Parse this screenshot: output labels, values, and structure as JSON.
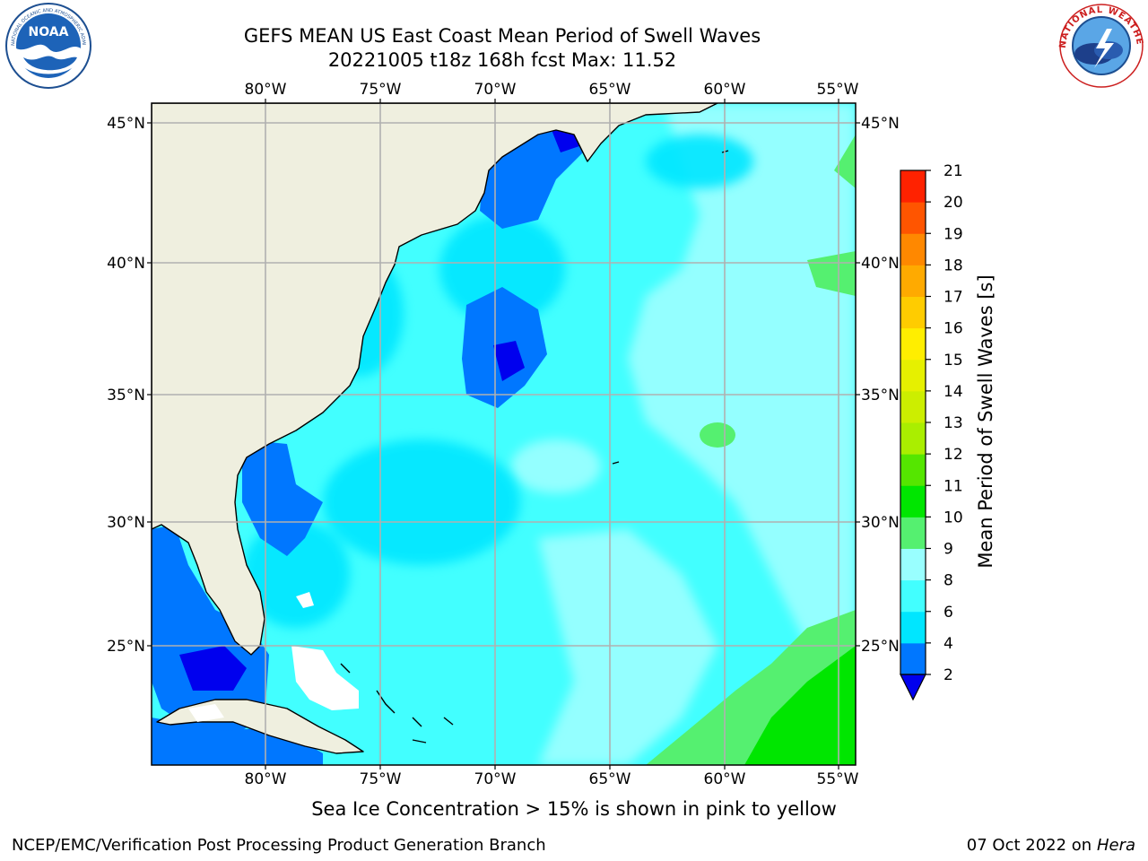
{
  "title": {
    "line1": "GEFS MEAN US East Coast Mean Period of Swell Waves",
    "line2": "20221005 t18z 168h fcst   Max: 11.52"
  },
  "logos": {
    "left": {
      "icon": "noaa-logo",
      "text": "NOAA",
      "ring_text": "NATIONAL OCEANIC AND ATMOSPHERIC ADMINISTRATION · U.S. DEPARTMENT OF COMMERCE"
    },
    "right": {
      "icon": "nws-logo",
      "ring_text": "NATIONAL WEATHER SERVICE"
    }
  },
  "map": {
    "lon_labels": [
      "80°W",
      "75°W",
      "70°W",
      "65°W",
      "60°W",
      "55°W"
    ],
    "lat_labels": [
      "45°N",
      "40°N",
      "35°N",
      "30°N",
      "25°N"
    ],
    "land_color": "#efefdf",
    "ocean_base_color": "#42ffff",
    "grid": true
  },
  "colorbar": {
    "label": "Mean Period of Swell Waves [s]",
    "ticks": [
      "2",
      "4",
      "6",
      "8",
      "9",
      "10",
      "11",
      "12",
      "13",
      "14",
      "15",
      "16",
      "17",
      "18",
      "19",
      "20",
      "21"
    ],
    "colors": [
      "#0077ff",
      "#00e6ff",
      "#42ffff",
      "#99ffff",
      "#55f070",
      "#00e600",
      "#55e600",
      "#aaee00",
      "#ccee00",
      "#e6f000",
      "#ffee00",
      "#ffcc00",
      "#ffaa00",
      "#ff8800",
      "#ff5500",
      "#ff2200"
    ],
    "under_color": "#0000ee"
  },
  "note": "Sea Ice Concentration > 15% is shown in pink to yellow",
  "footer": {
    "left": "NCEP/EMC/Verification Post Processing Product Generation Branch",
    "right_date": "07 Oct 2022 on ",
    "right_host": "Hera"
  }
}
